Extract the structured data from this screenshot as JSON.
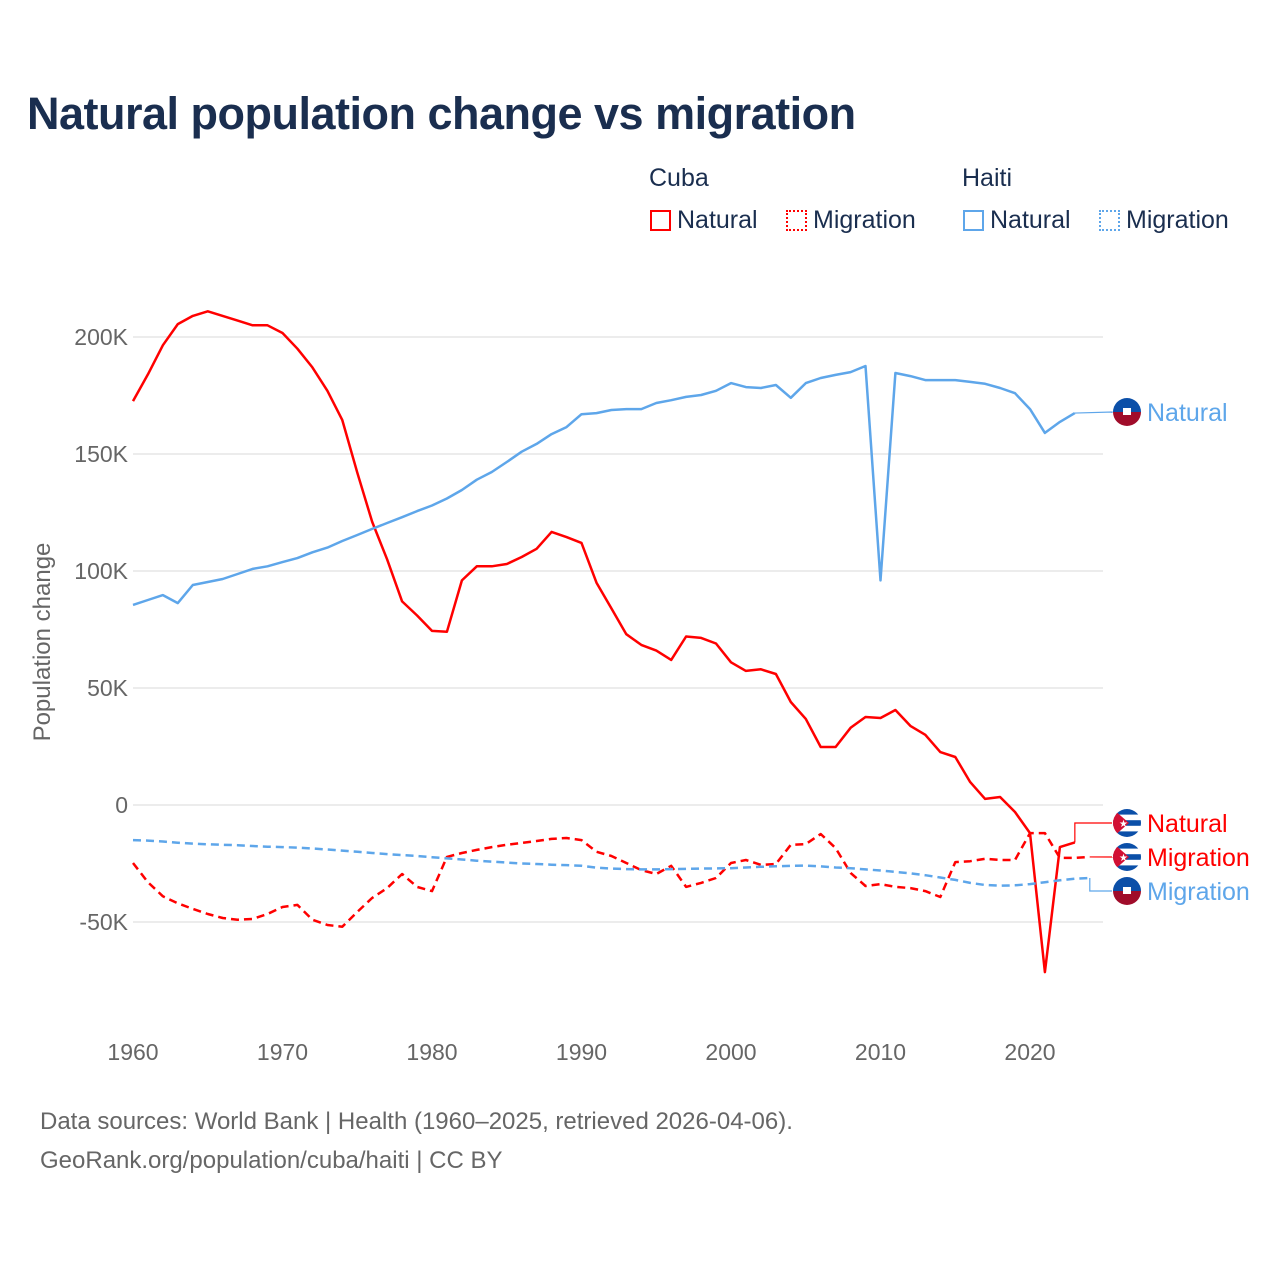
{
  "chart_data": {
    "type": "line",
    "title": "Natural population change vs migration",
    "xlabel": "",
    "ylabel": "Population change",
    "xlim": [
      1960,
      2025
    ],
    "ylim": [
      -85000,
      215000
    ],
    "grid": true,
    "x_ticks": [
      1960,
      1970,
      1980,
      1990,
      2000,
      2010,
      2020
    ],
    "x_tick_labels": [
      "1960",
      "1970",
      "1980",
      "1990",
      "2000",
      "2010",
      "2020"
    ],
    "y_ticks": [
      200000,
      150000,
      100000,
      50000,
      0,
      -50000
    ],
    "y_tick_labels": [
      "200K",
      "150K",
      "100K",
      "50K",
      "0",
      "-50K"
    ],
    "legend": {
      "placement": "top-right",
      "groups": [
        {
          "name": "Cuba",
          "items": [
            "Natural",
            "Migration"
          ]
        },
        {
          "name": "Haiti",
          "items": [
            "Natural",
            "Migration"
          ]
        }
      ]
    },
    "colors": {
      "Cuba": "#ff0000",
      "Haiti": "#5ea6ea"
    },
    "series": [
      {
        "name": "Cuba Natural",
        "country": "Cuba",
        "kind": "Natural",
        "label": "Natural",
        "dash": false,
        "start_year": 1960,
        "values": [
          172.6,
          184,
          196.5,
          205.5,
          209,
          211,
          209,
          207,
          205,
          205,
          201.7,
          195,
          187,
          177,
          164.5,
          142,
          121,
          105,
          87,
          81,
          74.4,
          74,
          96,
          102,
          102,
          103,
          106,
          109.5,
          116.7,
          114.5,
          112,
          95,
          84,
          73,
          68.4,
          66,
          62,
          72,
          71.4,
          69,
          61,
          57.3,
          58,
          56,
          44,
          36.8,
          24.8,
          24.8,
          33,
          37.6,
          37.2,
          40.6,
          33.8,
          30,
          22.6,
          20.5,
          9.8,
          2.6,
          3.4,
          -3,
          -12,
          -71.4,
          -18,
          -16
        ]
      },
      {
        "name": "Cuba Migration",
        "country": "Cuba",
        "kind": "Migration",
        "label": "Migration",
        "dash": true,
        "start_year": 1960,
        "values": [
          -24.8,
          -33,
          -39,
          -42,
          -44.4,
          -46.6,
          -48.3,
          -49,
          -48.7,
          -46.6,
          -43.6,
          -42.7,
          -49,
          -51.3,
          -52,
          -45.7,
          -39.7,
          -35.5,
          -29.5,
          -35,
          -36.8,
          -22.2,
          -20.5,
          -19.2,
          -18,
          -17,
          -16.2,
          -15.4,
          -14.5,
          -14.1,
          -15,
          -20,
          -21.8,
          -24.8,
          -27.8,
          -29.5,
          -26,
          -35,
          -33.3,
          -31.2,
          -24.8,
          -23.5,
          -25.6,
          -25.2,
          -17,
          -16.7,
          -12.4,
          -18.4,
          -29,
          -34.6,
          -33.8,
          -35,
          -35.5,
          -36.8,
          -39.3,
          -24.4,
          -24,
          -23,
          -23.5,
          -23.5,
          -12,
          -12,
          -22.6,
          -22.6,
          -22.2
        ]
      },
      {
        "name": "Haiti Natural",
        "country": "Haiti",
        "kind": "Natural",
        "label": "Natural",
        "dash": false,
        "start_year": 1960,
        "values": [
          85.5,
          87.6,
          89.7,
          86.3,
          94,
          95.3,
          96.6,
          98.7,
          100.9,
          102,
          103.8,
          105.5,
          108,
          110,
          112.8,
          115.4,
          118,
          120.5,
          123,
          125.6,
          128,
          131,
          134.6,
          139,
          142.3,
          146.6,
          151,
          154.3,
          158.5,
          161.5,
          167,
          167.5,
          168.8,
          169.2,
          169.2,
          171.8,
          173,
          174.4,
          175.2,
          177,
          180.3,
          178.6,
          178.2,
          179.5,
          174,
          180.3,
          182.5,
          183.8,
          185,
          187.6,
          96,
          184.6,
          183.3,
          181.6,
          181.6,
          181.6,
          180.8,
          180,
          178.2,
          176,
          169.2,
          159,
          163.7,
          167.5
        ]
      },
      {
        "name": "Haiti Migration",
        "country": "Haiti",
        "kind": "Migration",
        "label": "Migration",
        "dash": true,
        "start_year": 1960,
        "values": [
          -15,
          -15.2,
          -15.6,
          -16.1,
          -16.5,
          -16.8,
          -17,
          -17.2,
          -17.5,
          -17.8,
          -18,
          -18.2,
          -18.6,
          -19,
          -19.5,
          -20,
          -20.5,
          -21,
          -21.4,
          -21.8,
          -22.3,
          -22.8,
          -23.3,
          -23.8,
          -24.2,
          -24.6,
          -25,
          -25.2,
          -25.5,
          -25.7,
          -26,
          -26.8,
          -27.2,
          -27.4,
          -27.5,
          -27.5,
          -27.4,
          -27.3,
          -27.2,
          -27.1,
          -27,
          -26.7,
          -26.4,
          -26.2,
          -26,
          -25.9,
          -26.2,
          -26.7,
          -27,
          -27.5,
          -28,
          -28.6,
          -29.2,
          -30,
          -31,
          -32,
          -33.3,
          -34.2,
          -34.5,
          -34.3,
          -33.8,
          -33,
          -32.2,
          -31.5,
          -31.2
        ]
      }
    ]
  },
  "legend_labels": {
    "cuba": "Cuba",
    "haiti": "Haiti",
    "natural": "Natural",
    "migration": "Migration"
  },
  "source_lines": [
    "Data sources: World Bank | Health (1960–2025, retrieved 2026-04-06).",
    "GeoRank.org/population/cuba/haiti | CC BY"
  ]
}
